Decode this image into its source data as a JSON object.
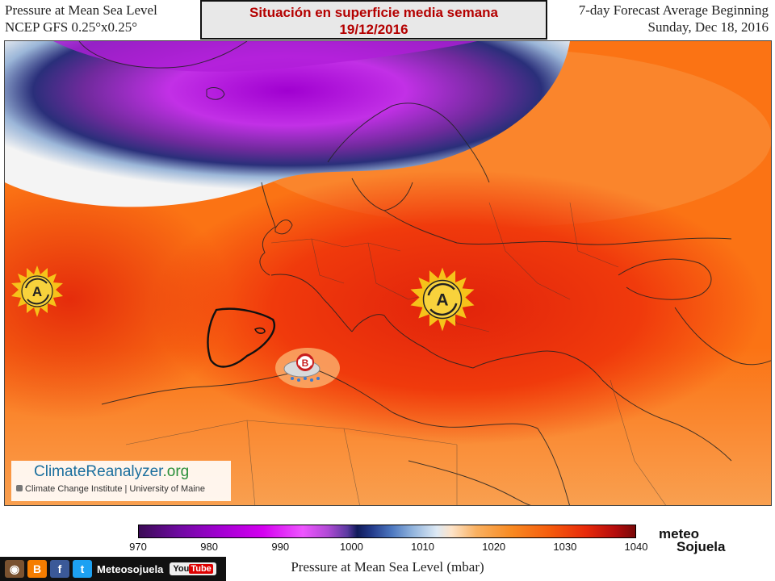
{
  "header": {
    "left_line1": "Pressure at Mean Sea Level",
    "left_line2": "NCEP GFS 0.25°x0.25°",
    "right_line1": "7-day Forecast Average Beginning",
    "right_line2": "Sunday, Dec 18, 2016"
  },
  "banner": {
    "line1": "Situación en superficie media semana",
    "line2": "19/12/2016"
  },
  "map": {
    "high_pressure_label": "A",
    "low_pressure_label": "B"
  },
  "credit": {
    "title_a": "Climate",
    "title_b": "Reanalyzer",
    "title_c": ".org",
    "subtitle": "Climate Change Institute | University of Maine"
  },
  "colorbar": {
    "ticks": [
      "970",
      "980",
      "990",
      "1000",
      "1010",
      "1020",
      "1030",
      "1040"
    ],
    "label": "Pressure at Mean Sea Level (mbar)"
  },
  "logo": {
    "line1": "meteo",
    "line2": "Sojuela"
  },
  "social": {
    "name": "Meteosojuela",
    "youtube_a": "You",
    "youtube_b": "Tube",
    "icons": [
      "instagram-icon",
      "blogger-icon",
      "facebook-icon",
      "twitter-icon"
    ]
  },
  "colors": {
    "banner_text": "#b40000",
    "high_symbol": "#f6c21a",
    "low_symbol": "#c81e1e"
  }
}
